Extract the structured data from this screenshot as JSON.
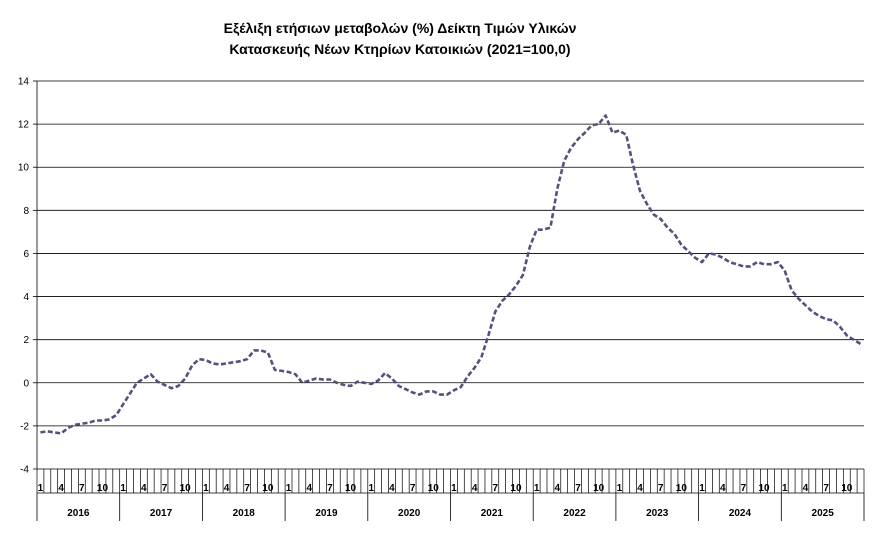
{
  "chart_data": {
    "type": "line",
    "title_line1": "Εξέλιξη ετήσιων μεταβολών (%) Δείκτη Τιμών Υλικών",
    "title_line2": "Κατασκευής Νέων Κτηρίων Κατοικιών (2021=100,0)",
    "ylim": [
      -4,
      14
    ],
    "yticks": [
      -4,
      -2,
      0,
      2,
      4,
      6,
      8,
      10,
      12,
      14
    ],
    "grid": true,
    "line_color": "#5a4f7c",
    "line_style": "dashed",
    "month_tick_labels": [
      "1",
      "4",
      "7",
      "10"
    ],
    "years": [
      "2016",
      "2017",
      "2018",
      "2019",
      "2020",
      "2021",
      "2022",
      "2023",
      "2024",
      "2025"
    ],
    "months_in_last_year": 12,
    "values": [
      -2.3,
      -2.25,
      -2.3,
      -2.35,
      -2.1,
      -1.95,
      -1.9,
      -1.85,
      -1.75,
      -1.75,
      -1.7,
      -1.5,
      -1.0,
      -0.5,
      0.0,
      0.2,
      0.4,
      0.05,
      -0.1,
      -0.25,
      -0.15,
      0.2,
      0.8,
      1.1,
      1.05,
      0.9,
      0.85,
      0.9,
      0.95,
      1.0,
      1.1,
      1.5,
      1.5,
      1.4,
      0.6,
      0.55,
      0.5,
      0.4,
      0.0,
      0.1,
      0.2,
      0.15,
      0.15,
      0.0,
      -0.1,
      -0.15,
      0.05,
      0.0,
      -0.05,
      0.1,
      0.45,
      0.2,
      -0.15,
      -0.3,
      -0.45,
      -0.55,
      -0.4,
      -0.4,
      -0.55,
      -0.55,
      -0.35,
      -0.2,
      0.3,
      0.7,
      1.2,
      2.2,
      3.3,
      3.8,
      4.1,
      4.5,
      5.0,
      6.3,
      7.1,
      7.1,
      7.2,
      9.0,
      10.3,
      10.9,
      11.3,
      11.6,
      11.95,
      12.0,
      12.4,
      11.6,
      11.7,
      11.5,
      10.1,
      8.9,
      8.3,
      7.8,
      7.6,
      7.2,
      6.9,
      6.4,
      6.1,
      5.8,
      5.6,
      6.0,
      5.95,
      5.8,
      5.6,
      5.5,
      5.4,
      5.4,
      5.6,
      5.5,
      5.5,
      5.6,
      5.2,
      4.3,
      3.9,
      3.6,
      3.3,
      3.1,
      2.95,
      2.9,
      2.6,
      2.2,
      2.0,
      1.8
    ]
  }
}
